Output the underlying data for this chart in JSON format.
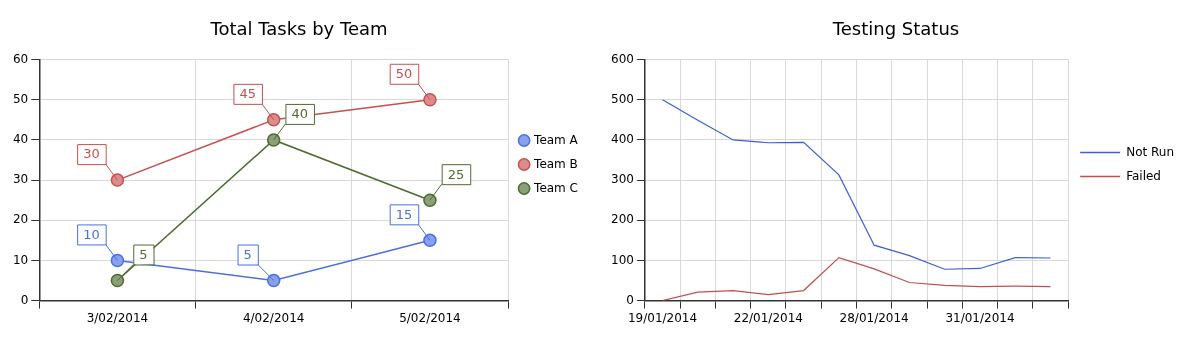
{
  "chart_data": [
    {
      "type": "line",
      "title": "Total Tasks by Team",
      "categories": [
        "3/02/2014",
        "4/02/2014",
        "5/02/2014"
      ],
      "series": [
        {
          "name": "Team A",
          "color": "#4a6fe3",
          "values": [
            10,
            5,
            15
          ]
        },
        {
          "name": "Team B",
          "color": "#c8504f",
          "values": [
            30,
            45,
            50
          ]
        },
        {
          "name": "Team C",
          "color": "#4e6b2f",
          "values": [
            5,
            40,
            25
          ]
        }
      ],
      "ylim": [
        0,
        60
      ],
      "yticks": [
        0,
        10,
        20,
        30,
        40,
        50,
        60
      ],
      "grid": true,
      "legend": "right",
      "marker": "circle",
      "data_labels": true
    },
    {
      "type": "line",
      "title": "Testing Status",
      "categories": [
        "19/01/2014",
        null,
        null,
        "22/01/2014",
        null,
        null,
        "28/01/2014",
        null,
        null,
        "31/01/2014",
        null,
        null
      ],
      "series": [
        {
          "name": "Not Run",
          "color": "#3c5fd8",
          "values": [
            500,
            449,
            400,
            393,
            394,
            313,
            138,
            112,
            78,
            80,
            107,
            106
          ]
        },
        {
          "name": "Failed",
          "color": "#c0504d",
          "values": [
            0,
            21,
            25,
            15,
            25,
            107,
            79,
            45,
            38,
            35,
            36,
            35
          ]
        }
      ],
      "ylim": [
        0,
        600
      ],
      "yticks": [
        0,
        100,
        200,
        300,
        400,
        500,
        600
      ],
      "grid": true,
      "legend": "right",
      "marker": "none"
    }
  ]
}
